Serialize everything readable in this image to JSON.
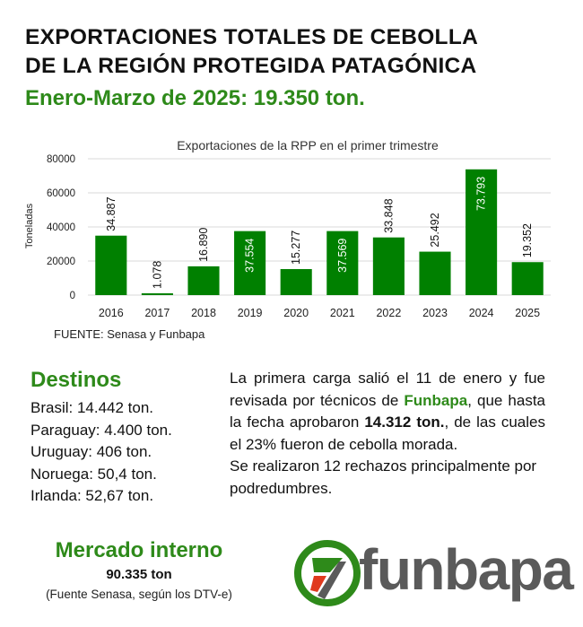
{
  "header": {
    "title_line1": "EXPORTACIONES TOTALES DE CEBOLLA",
    "title_line2": "DE LA REGIÓN PROTEGIDA PATAGÓNICA",
    "subtitle": "Enero-Marzo de 2025: 19.350 ton."
  },
  "chart_data": {
    "type": "bar",
    "title": "Exportaciones de la RPP en el primer trimestre",
    "xlabel": "",
    "ylabel": "Toneladas",
    "categories": [
      "2016",
      "2017",
      "2018",
      "2019",
      "2020",
      "2021",
      "2022",
      "2023",
      "2024",
      "2025"
    ],
    "values": [
      34887,
      1078,
      16890,
      37554,
      15277,
      37569,
      33848,
      25492,
      73793,
      19352
    ],
    "value_labels": [
      "34.887",
      "1.078",
      "16.890",
      "37.554",
      "15.277",
      "37.569",
      "33.848",
      "25.492",
      "73.793",
      "19.352"
    ],
    "ylim": [
      0,
      80000
    ],
    "yticks": [
      0,
      20000,
      40000,
      60000,
      80000
    ],
    "ytick_labels": [
      "0",
      "20000",
      "40000",
      "60000",
      "80000"
    ],
    "bar_color": "#008000",
    "grid": true,
    "legend": "none"
  },
  "source": "FUENTE: Senasa y Funbapa",
  "destinations": {
    "title": "Destinos",
    "items": [
      "Brasil: 14.442 ton.",
      "Paraguay: 4.400 ton.",
      "Uruguay: 406 ton.",
      "Noruega: 50,4 ton.",
      "Irlanda: 52,67 ton."
    ]
  },
  "info": {
    "p1_a": "La primera carga salió el 11 de enero y fue revisada por técnicos de ",
    "p1_org": "Funbapa",
    "p1_b": ", que hasta la fecha aprobaron ",
    "p1_amount": "14.312 ton.",
    "p1_c": ", de las cuales el 23% fueron de cebolla morada.",
    "p2": "Se realizaron 12 rechazos principalmente por podredumbres."
  },
  "market": {
    "title": "Mercado interno",
    "value": "90.335 ton",
    "note": "(Fuente Senasa, según los DTV-e)"
  },
  "logo": {
    "text": "funbapa",
    "colors": {
      "ring": "#2e8a1a",
      "accent": "#e03a1e",
      "text": "#5a5a5a"
    }
  },
  "colors": {
    "accent_green": "#2e8a1a",
    "bar": "#008000"
  }
}
